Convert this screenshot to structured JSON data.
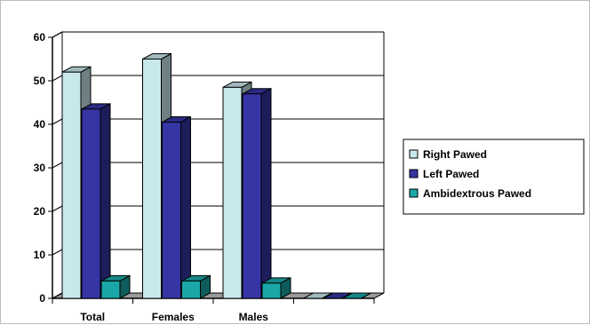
{
  "chart_data": {
    "type": "bar",
    "title": "",
    "xlabel": "",
    "ylabel": "",
    "categories": [
      "Total",
      "Females",
      "Males",
      ""
    ],
    "series": [
      {
        "name": "Right Pawed",
        "values": [
          52,
          55,
          48.5,
          0
        ],
        "color": "#c8e8ec"
      },
      {
        "name": "Left Pawed",
        "values": [
          43.5,
          40.5,
          47,
          0
        ],
        "color": "#3535a5"
      },
      {
        "name": "Ambidextrous Pawed",
        "values": [
          4,
          4,
          3.5,
          0
        ],
        "color": "#1aa7a7"
      }
    ],
    "ylim": [
      0,
      60
    ],
    "yticks": [
      0,
      10,
      20,
      30,
      40,
      50,
      60
    ],
    "grid": true,
    "legend_position": "right"
  }
}
